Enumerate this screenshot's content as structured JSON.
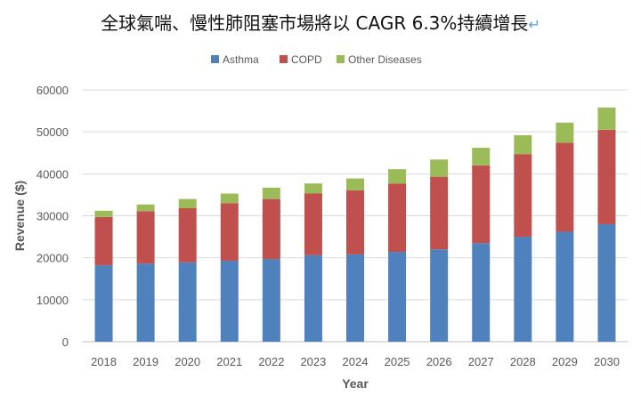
{
  "chart_data": {
    "type": "bar",
    "stacked": true,
    "title": "全球氣喘、慢性肺阻塞市場將以 CAGR 6.3%持續增長",
    "title_mark": "↵",
    "xlabel": "Year",
    "ylabel": "Revenue ($)",
    "ylim": [
      0,
      60000
    ],
    "yticks": [
      0,
      10000,
      20000,
      30000,
      40000,
      50000,
      60000
    ],
    "grid": true,
    "legend_position": "top",
    "categories": [
      "2018",
      "2019",
      "2020",
      "2021",
      "2022",
      "2023",
      "2024",
      "2025",
      "2026",
      "2027",
      "2028",
      "2029",
      "2030"
    ],
    "series": [
      {
        "name": "Asthma",
        "color": "#4f81bd",
        "values": [
          18200,
          18600,
          18900,
          19300,
          19700,
          20600,
          20800,
          21400,
          22000,
          23500,
          25000,
          26200,
          28000
        ]
      },
      {
        "name": "COPD",
        "color": "#c0504d",
        "values": [
          11500,
          12500,
          12900,
          13700,
          14300,
          14700,
          15300,
          16300,
          17300,
          18500,
          19700,
          21200,
          22500
        ]
      },
      {
        "name": "Other Diseases",
        "color": "#9bbb59",
        "values": [
          1500,
          1600,
          2200,
          2300,
          2700,
          2400,
          2800,
          3400,
          4100,
          4200,
          4500,
          4800,
          5300
        ]
      }
    ]
  }
}
